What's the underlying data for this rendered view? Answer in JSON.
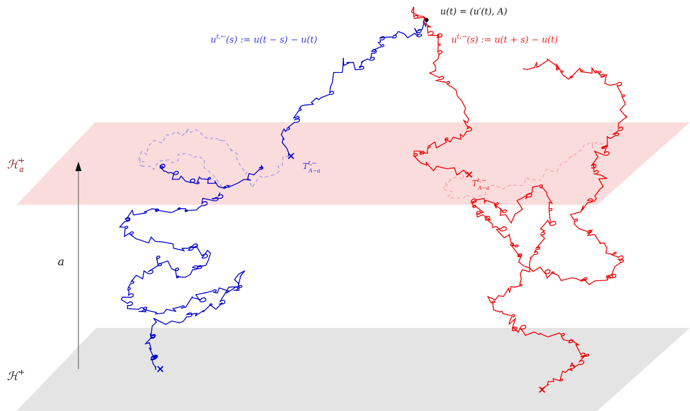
{
  "labels": {
    "H_a_plus": {
      "base": "ℋ",
      "sup": "+",
      "sub": "a"
    },
    "H_plus": {
      "base": "ℋ",
      "sup": "+"
    },
    "a_axis": "a",
    "u_t": "u(t) = (u′(t), A)",
    "backward": {
      "base": "u",
      "sup": "t,←",
      "rest": "(s) := u(t − s) − u(t)"
    },
    "forward": {
      "base": "u",
      "sup": "t,→",
      "rest": "(s) := u(t + s) − u(t)"
    },
    "T_back": {
      "base": "T",
      "sup": "t,←",
      "sub": "A−a"
    },
    "T_fwd": {
      "base": "T",
      "sup": "t,→",
      "sub": "A−a"
    }
  },
  "colors": {
    "upper_plane": "#fbdcdc",
    "lower_plane": "#e2e2e2",
    "blue": "#0000cc",
    "blue_light": "#9b96e8",
    "red": "#ee0000",
    "red_light": "#f3a3a3",
    "axis": "#777777",
    "text_dark": "#8b1010"
  }
}
